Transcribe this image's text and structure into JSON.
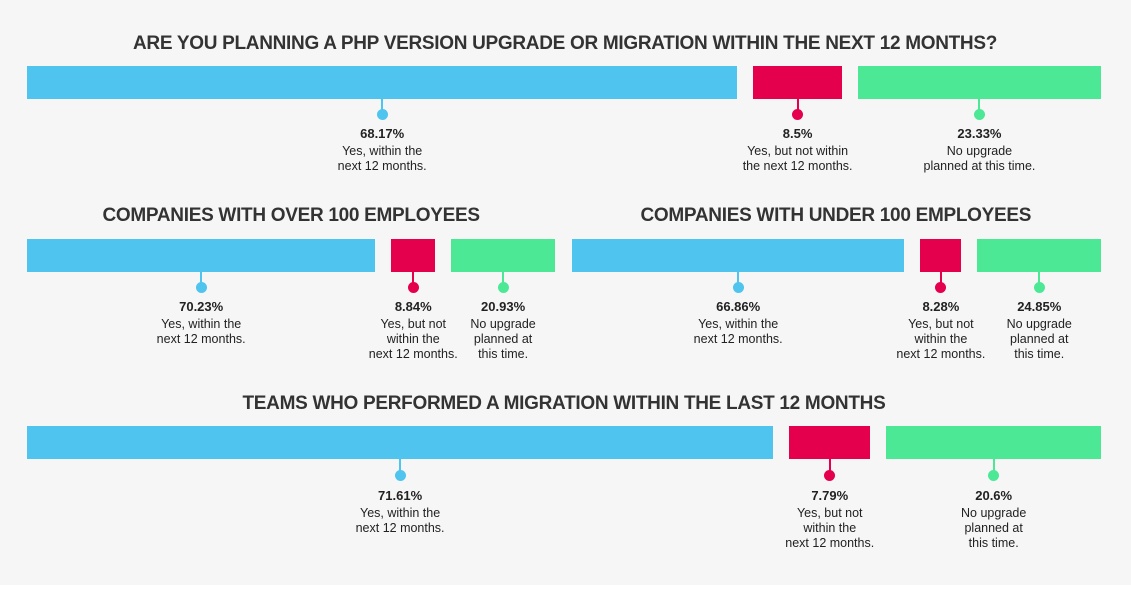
{
  "colors": {
    "yes_within": "#4fc4ee",
    "yes_not_within": "#e5004d",
    "no_upgrade": "#4de896",
    "background": "#f6f6f6"
  },
  "chart_data": [
    {
      "id": "overall",
      "type": "bar",
      "orientation": "horizontal-stacked",
      "title": "ARE YOU PLANNING A PHP VERSION UPGRADE OR MIGRATION WITHIN THE NEXT 12 MONTHS?",
      "unit": "%",
      "categories": [
        "Yes, within the\nnext 12 months.",
        "Yes, but not within\nthe next 12 months.",
        "No upgrade\nplanned at this time."
      ],
      "values": [
        68.17,
        8.5,
        23.33
      ],
      "value_labels": [
        "68.17%",
        "8.5%",
        "23.33%"
      ]
    },
    {
      "id": "over100",
      "type": "bar",
      "orientation": "horizontal-stacked",
      "title": "COMPANIES WITH OVER 100 EMPLOYEES",
      "unit": "%",
      "categories": [
        "Yes, within the\nnext 12 months.",
        "Yes, but not\nwithin the\nnext 12 months.",
        "No upgrade\nplanned at\nthis time."
      ],
      "values": [
        70.23,
        8.84,
        20.93
      ],
      "value_labels": [
        "70.23%",
        "8.84%",
        "20.93%"
      ]
    },
    {
      "id": "under100",
      "type": "bar",
      "orientation": "horizontal-stacked",
      "title": "COMPANIES WITH UNDER 100 EMPLOYEES",
      "unit": "%",
      "categories": [
        "Yes, within the\nnext 12 months.",
        "Yes, but not\nwithin the\nnext 12 months.",
        "No upgrade\nplanned at\nthis time."
      ],
      "values": [
        66.86,
        8.28,
        24.85
      ],
      "value_labels": [
        "66.86%",
        "8.28%",
        "24.85%"
      ]
    },
    {
      "id": "migrated",
      "type": "bar",
      "orientation": "horizontal-stacked",
      "title": "TEAMS WHO PERFORMED A MIGRATION WITHIN THE LAST 12 MONTHS",
      "unit": "%",
      "categories": [
        "Yes, within the\nnext 12 months.",
        "Yes, but not\nwithin the\nnext 12 months.",
        "No upgrade\nplanned at\nthis time."
      ],
      "values": [
        71.61,
        7.79,
        20.6
      ],
      "value_labels": [
        "71.61%",
        "7.79%",
        "20.6%"
      ]
    }
  ]
}
